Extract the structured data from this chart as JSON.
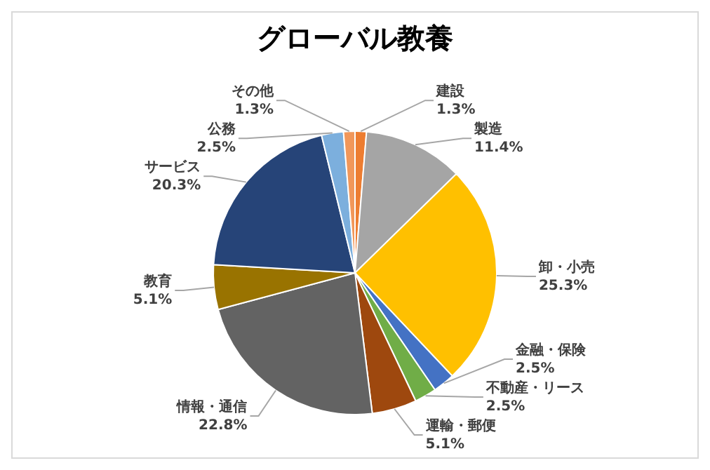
{
  "chart_data": {
    "type": "pie",
    "title": "グローバル教養",
    "categories": [
      "建設",
      "製造",
      "卸・小売",
      "金融・保険",
      "不動産・リース",
      "運輸・郵便",
      "情報・通信",
      "教育",
      "サービス",
      "公務",
      "その他"
    ],
    "values": [
      1.3,
      11.4,
      25.3,
      2.5,
      2.5,
      5.1,
      22.8,
      5.1,
      20.3,
      2.5,
      1.3
    ],
    "value_labels": [
      "1.3%",
      "11.4%",
      "25.3%",
      "2.5%",
      "2.5%",
      "5.1%",
      "22.8%",
      "5.1%",
      "20.3%",
      "2.5%",
      "1.3%"
    ],
    "colors": [
      "#ed7d31",
      "#a5a5a5",
      "#ffc000",
      "#4472c4",
      "#70ad47",
      "#9e480e",
      "#636363",
      "#997300",
      "#264478",
      "#7cafdd",
      "#f1975a"
    ],
    "legend": false
  }
}
